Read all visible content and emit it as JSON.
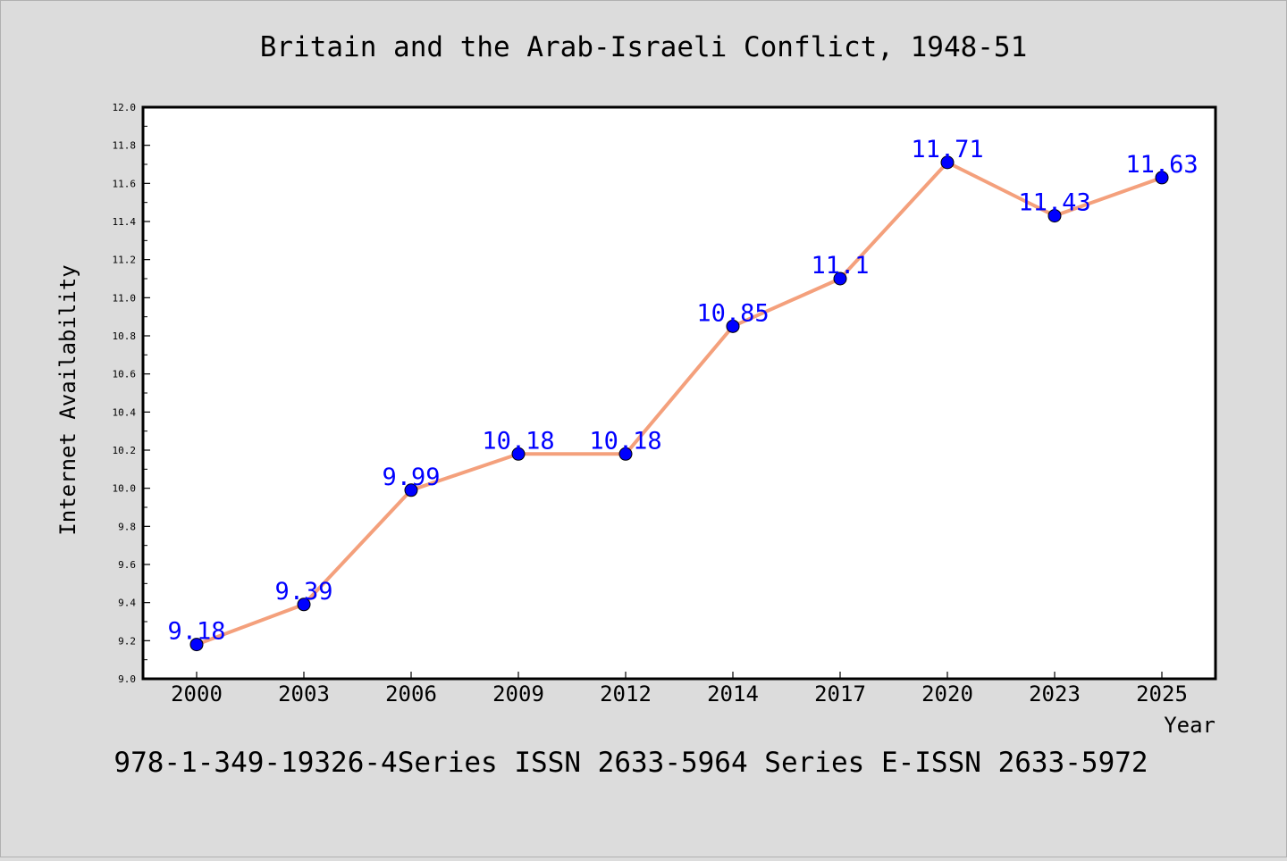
{
  "chart_data": {
    "type": "line",
    "title": "Britain and the Arab-Israeli Conflict, 1948-51",
    "xlabel": "Year",
    "ylabel": "Internet Availability",
    "footer": "978-1-349-19326-4Series ISSN 2633-5964 Series E-ISSN 2633-5972",
    "categories": [
      "2000",
      "2003",
      "2006",
      "2009",
      "2012",
      "2014",
      "2017",
      "2020",
      "2023",
      "2025"
    ],
    "values": [
      9.18,
      9.39,
      9.99,
      10.18,
      10.18,
      10.85,
      11.1,
      11.71,
      11.43,
      11.63
    ],
    "data_labels": [
      "9.18",
      "9.39",
      "9.99",
      "10.18",
      "10.18",
      "10.85",
      "11.1",
      "11.71",
      "11.43",
      "11.63"
    ],
    "ylim": [
      9.0,
      12.0
    ],
    "yticks": [
      "9.0",
      "9.2",
      "9.4",
      "9.6",
      "9.8",
      "10.0",
      "10.2",
      "10.4",
      "10.6",
      "10.8",
      "11.0",
      "11.2",
      "11.4",
      "11.6",
      "11.8",
      "12.0"
    ],
    "grid": false,
    "legend": "none",
    "colors": {
      "line": "#f4a07c",
      "marker": "#0000ff",
      "data_label": "#0000ff",
      "background": "#dcdcdc",
      "plot_background": "#ffffff",
      "axis": "#000000"
    }
  }
}
